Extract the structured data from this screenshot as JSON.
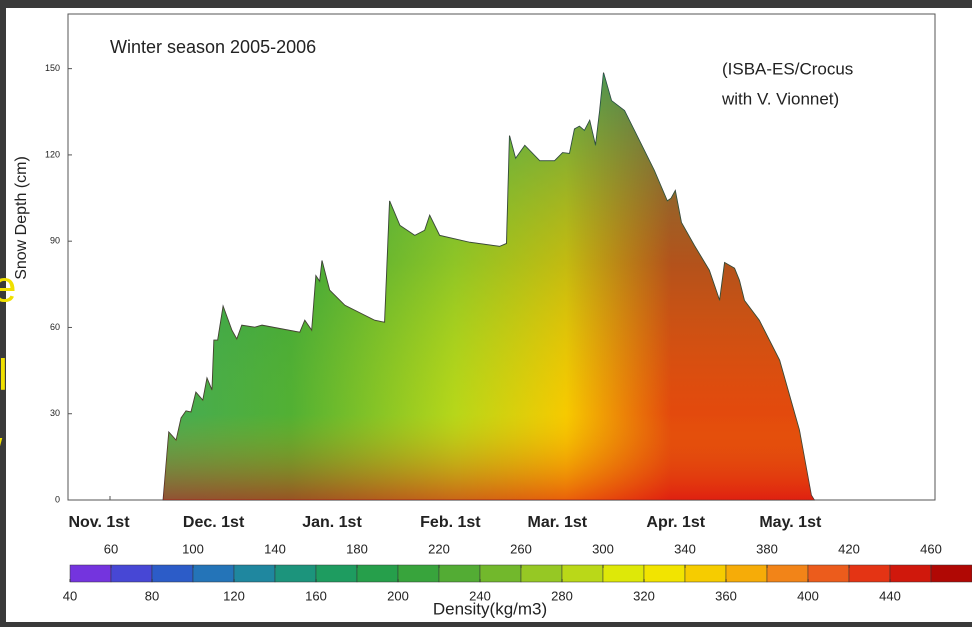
{
  "chart_data": {
    "type": "area",
    "title": "Winter season 2005-2006",
    "annotation_lines": [
      "(ISBA-ES/Crocus",
      "with V. Vionnet)"
    ],
    "y_label": "Snow Depth (cm)",
    "x": [
      13.9,
      15.4,
      17.3,
      18.6,
      19.9,
      21.2,
      22.5,
      24.3,
      25.4,
      26.7,
      27.2,
      28.2,
      29.6,
      31.9,
      33.2,
      34.5,
      37.9,
      39.8,
      49.7,
      51,
      52.8,
      53.9,
      54.9,
      55.5,
      57.5,
      61.5,
      69.3,
      71.9,
      73.2,
      75.9,
      79.8,
      82.4,
      83.7,
      86.3,
      94.2,
      102,
      103.8,
      104.6,
      106.2,
      108.6,
      112.5,
      116.4,
      118.5,
      120.3,
      121.6,
      122.9,
      124.2,
      125.6,
      127.1,
      128.2,
      129.2,
      131.3,
      134.7,
      138.6,
      142.5,
      145.9,
      146.9,
      148,
      149.6,
      153,
      156.9,
      159.6,
      160.9,
      163.5,
      164.8,
      166.1,
      170,
      175.3,
      180.5,
      183.6,
      184.4
    ],
    "series": [
      {
        "name": "Snow depth",
        "values": [
          0,
          23.6,
          20.8,
          28.5,
          31,
          30.6,
          37.5,
          34.7,
          42.4,
          38.2,
          55.6,
          55.6,
          67.4,
          59,
          56,
          60.8,
          60.1,
          60.8,
          58.3,
          62.5,
          59,
          78,
          76,
          83.3,
          73,
          67.7,
          62.5,
          61.8,
          104,
          95.5,
          92,
          93.8,
          99,
          92,
          89.6,
          88.2,
          89.2,
          126.7,
          118.8,
          123.3,
          118,
          118,
          120.8,
          120.5,
          129,
          130,
          128.5,
          132,
          123.3,
          135.4,
          148.6,
          138.9,
          135.4,
          125,
          114.6,
          104,
          104.9,
          107.6,
          96.5,
          88.5,
          79.9,
          69.4,
          82.6,
          80.6,
          76.4,
          69.4,
          62.5,
          48.6,
          24.3,
          1.7,
          0
        ]
      }
    ],
    "xlim": [
      -11,
      216
    ],
    "xticks": [
      {
        "value": 0,
        "label": "Nov. 1st"
      },
      {
        "value": 30,
        "label": "Dec. 1st"
      },
      {
        "value": 61,
        "label": "Jan. 1st"
      },
      {
        "value": 92,
        "label": "Feb. 1st"
      },
      {
        "value": 120,
        "label": "Mar. 1st"
      },
      {
        "value": 151,
        "label": "Apr. 1st"
      },
      {
        "value": 181,
        "label": "May. 1st"
      }
    ],
    "ylim": [
      0,
      169
    ],
    "yticks": [
      0,
      30,
      60,
      90,
      120,
      150
    ],
    "colorbar": {
      "label": "Density(kg/m3)",
      "lim": [
        40,
        480
      ],
      "ticks_top": [
        60,
        100,
        140,
        180,
        220,
        260,
        300,
        340,
        380,
        420,
        460
      ],
      "ticks_bottom": [
        40,
        80,
        120,
        160,
        200,
        240,
        280,
        320,
        360,
        400,
        440
      ],
      "colors": [
        "#8a2be2",
        "#3050d0",
        "#2080b0",
        "#1a9a6a",
        "#2aa040",
        "#60b030",
        "#a8d020",
        "#f0f000",
        "#f8c000",
        "#f07020",
        "#e02010",
        "#a00000"
      ]
    },
    "slide_fragments": [
      "e",
      "l",
      "/"
    ]
  }
}
